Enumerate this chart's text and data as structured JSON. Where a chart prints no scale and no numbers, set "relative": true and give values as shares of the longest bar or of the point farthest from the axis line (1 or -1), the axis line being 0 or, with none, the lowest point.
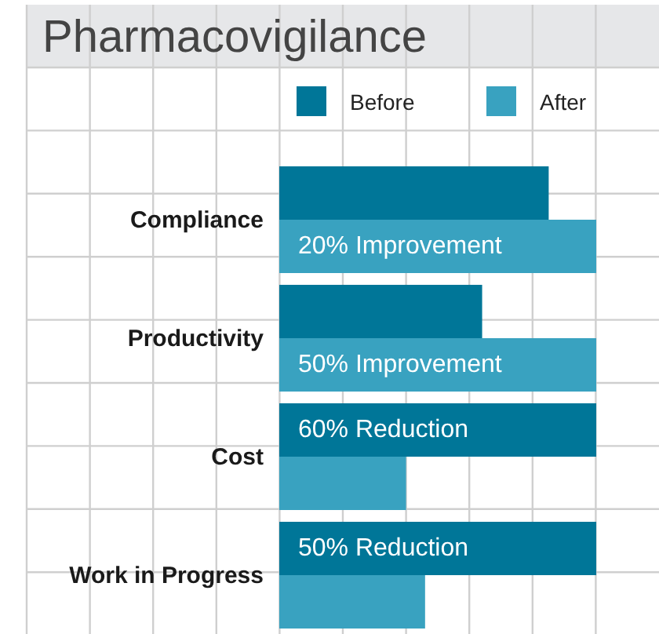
{
  "chart_data": {
    "type": "bar",
    "orientation": "horizontal",
    "relative": true,
    "title": "Pharmacovigilance",
    "categories": [
      "Compliance",
      "Productivity",
      "Cost",
      "Work in Progress"
    ],
    "series": [
      {
        "name": "Before",
        "color": "#007698",
        "values": [
          0.85,
          0.64,
          1,
          1
        ]
      },
      {
        "name": "After",
        "color": "#39a2c0",
        "values": [
          1,
          1,
          0.4,
          0.46
        ]
      }
    ],
    "annotations": [
      {
        "text": "20% Improvement",
        "y": "Compliance"
      },
      {
        "text": "50% Improvement",
        "y": "Productivity"
      },
      {
        "text": "60% Reduction",
        "y": "Cost"
      },
      {
        "text": "50% Reduction",
        "y": "Work in Progress"
      }
    ],
    "legend": "top",
    "grid": true
  }
}
